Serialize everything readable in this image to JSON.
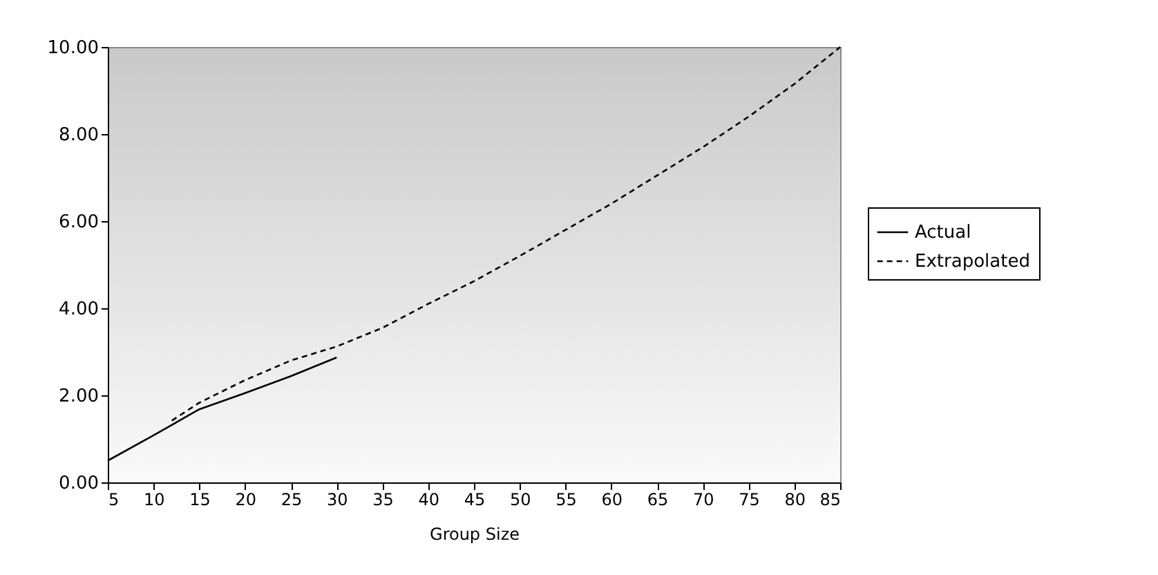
{
  "chart_data": {
    "type": "line",
    "xlabel": "Group Size",
    "xlim": [
      5,
      85
    ],
    "xticks": [
      5,
      10,
      15,
      20,
      25,
      30,
      35,
      40,
      45,
      50,
      55,
      60,
      65,
      70,
      75,
      80,
      85
    ],
    "ylim": [
      0,
      10
    ],
    "yticks": [
      {
        "value": 0,
        "label": "0.00"
      },
      {
        "value": 2,
        "label": "2.00"
      },
      {
        "value": 4,
        "label": "4.00"
      },
      {
        "value": 6,
        "label": "6.00"
      },
      {
        "value": 8,
        "label": "8.00"
      },
      {
        "value": 10,
        "label": "10.00"
      }
    ],
    "grid": false,
    "legend": "right",
    "series": [
      {
        "name": "Actual",
        "color": "#000000",
        "line_style": "solid",
        "x": [
          5,
          10,
          15,
          20,
          25,
          30
        ],
        "values": [
          0.5,
          1.08,
          1.68,
          2.05,
          2.44,
          2.87
        ]
      },
      {
        "name": "Extrapolated",
        "color": "#000000",
        "line_style": "dashed",
        "x": [
          12,
          15,
          20,
          25,
          30,
          35,
          40,
          45,
          50,
          55,
          60,
          65,
          70,
          75,
          80,
          85
        ],
        "values": [
          1.42,
          1.83,
          2.35,
          2.8,
          3.12,
          3.55,
          4.1,
          4.62,
          5.2,
          5.8,
          6.4,
          7.05,
          7.7,
          8.4,
          9.15,
          10
        ]
      }
    ]
  }
}
